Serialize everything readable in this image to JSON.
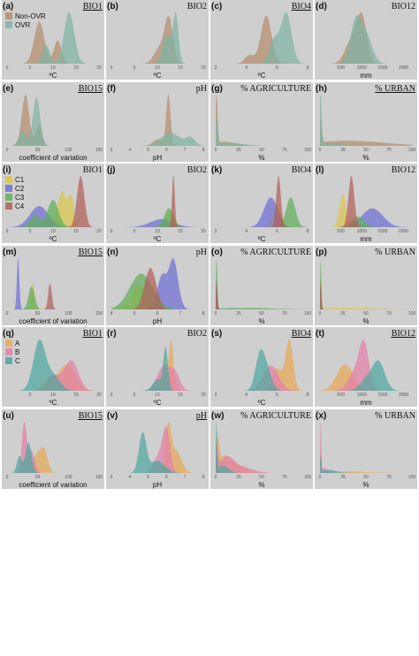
{
  "palettes": {
    "set1": [
      "#b48d6e",
      "#7fb3a4"
    ],
    "set2": [
      "#d9c64a",
      "#6f6fd6",
      "#5fae5a",
      "#b0605a"
    ],
    "set3": [
      "#e6a957",
      "#e37fa8",
      "#4fa8a0"
    ]
  },
  "legends": [
    {
      "row": 0,
      "entries": [
        "Non-OVR",
        "OVR"
      ]
    },
    {
      "row": 2,
      "entries": [
        "C1",
        "C2",
        "C3",
        "C4"
      ]
    },
    {
      "row": 4,
      "entries": [
        "A",
        "B",
        "C"
      ]
    }
  ],
  "chart_data": [
    {
      "id": "a",
      "label": "(a)",
      "title": "BIO1",
      "underline": true,
      "palette": "set1",
      "xlabel": "ºC",
      "ticks": [
        "0",
        "5",
        "10",
        "15",
        "20"
      ],
      "range": [
        0,
        20
      ],
      "series": [
        [
          [
            7,
            0.45,
            1.1
          ],
          [
            11,
            0.25,
            0.8
          ]
        ],
        [
          [
            13.5,
            0.55,
            1.1
          ],
          [
            8.5,
            0.2,
            0.8
          ]
        ]
      ]
    },
    {
      "id": "b",
      "label": "(b)",
      "title": "BIO2",
      "underline": false,
      "palette": "set1",
      "xlabel": "ºC",
      "ticks": [
        "0",
        "5",
        "10",
        "15",
        "20"
      ],
      "range": [
        0,
        20
      ],
      "series": [
        [
          [
            12.5,
            0.85,
            0.9
          ],
          [
            10.5,
            0.3,
            1.2
          ]
        ],
        [
          [
            14,
            0.95,
            0.6
          ],
          [
            12,
            0.55,
            0.9
          ]
        ]
      ]
    },
    {
      "id": "c",
      "label": "(c)",
      "title": "BIO4",
      "underline": true,
      "palette": "set1",
      "xlabel": "ºC",
      "ticks": [
        "2",
        "4",
        "6",
        "8"
      ],
      "range": [
        2,
        8
      ],
      "series": [
        [
          [
            5.3,
            0.85,
            0.35
          ],
          [
            4.2,
            0.15,
            0.3
          ]
        ],
        [
          [
            6.6,
            0.9,
            0.35
          ],
          [
            5.8,
            0.4,
            0.3
          ]
        ]
      ]
    },
    {
      "id": "d",
      "label": "(d)",
      "title": "BIO12",
      "underline": false,
      "palette": "set1",
      "xlabel": "mm",
      "ticks": [
        "500",
        "1000",
        "1500",
        "2000"
      ],
      "range": [
        0,
        2200
      ],
      "series": [
        [
          [
            1000,
            0.9,
            120
          ],
          [
            750,
            0.45,
            150
          ]
        ],
        [
          [
            850,
            0.8,
            130
          ],
          [
            1100,
            0.55,
            150
          ]
        ]
      ]
    },
    {
      "id": "e",
      "label": "(e)",
      "title": "BIO15",
      "underline": true,
      "palette": "set1",
      "xlabel": "coefficient of variation",
      "ticks": [
        "0",
        "50",
        "100",
        "150"
      ],
      "range": [
        0,
        150
      ],
      "series": [
        [
          [
            30,
            0.85,
            6
          ],
          [
            52,
            0.35,
            5
          ]
        ],
        [
          [
            48,
            0.8,
            6
          ],
          [
            25,
            0.25,
            6
          ]
        ]
      ]
    },
    {
      "id": "f",
      "label": "(f)",
      "title": "pH",
      "underline": false,
      "palette": "set1",
      "xlabel": "pH",
      "ticks": [
        "3",
        "4",
        "5",
        "6",
        "7",
        "8"
      ],
      "range": [
        3,
        8
      ],
      "series": [
        [
          [
            6.1,
            0.95,
            0.12
          ],
          [
            5.5,
            0.12,
            0.25
          ]
        ],
        [
          [
            6.2,
            0.25,
            0.5
          ],
          [
            7.3,
            0.15,
            0.25
          ]
        ]
      ]
    },
    {
      "id": "g",
      "label": "(g)",
      "title": "% AGRICULTURE",
      "underline": false,
      "palette": "set1",
      "xlabel": "%",
      "ticks": [
        "0",
        "25",
        "50",
        "75",
        "100"
      ],
      "range": [
        0,
        100
      ],
      "series": [
        [
          [
            0.8,
            0.95,
            1.2
          ],
          [
            10,
            0.08,
            12
          ]
        ],
        [
          [
            1,
            0.5,
            1.5
          ],
          [
            15,
            0.06,
            15
          ]
        ]
      ]
    },
    {
      "id": "h",
      "label": "(h)",
      "title": "% URBAN",
      "underline": true,
      "palette": "set1",
      "xlabel": "%",
      "ticks": [
        "0",
        "25",
        "50",
        "75",
        "100"
      ],
      "range": [
        0,
        100
      ],
      "series": [
        [
          [
            0.8,
            0.45,
            1.2
          ],
          [
            30,
            0.1,
            40
          ]
        ],
        [
          [
            0.5,
            0.95,
            1.2
          ],
          [
            10,
            0.05,
            15
          ]
        ]
      ]
    },
    {
      "id": "i",
      "label": "(i)",
      "title": "BIO1",
      "underline": false,
      "palette": "set2",
      "xlabel": "ºC",
      "ticks": [
        "0",
        "5",
        "10",
        "15",
        "20"
      ],
      "range": [
        0,
        20
      ],
      "series": [
        [
          [
            12,
            0.6,
            1.0
          ],
          [
            14,
            0.45,
            0.6
          ]
        ],
        [
          [
            7,
            0.35,
            2.0
          ]
        ],
        [
          [
            10,
            0.45,
            1.2
          ],
          [
            6,
            0.2,
            1.0
          ]
        ],
        [
          [
            16,
            0.85,
            0.8
          ]
        ]
      ]
    },
    {
      "id": "j",
      "label": "(j)",
      "title": "BIO2",
      "underline": false,
      "palette": "set2",
      "xlabel": "ºC",
      "ticks": [
        "0",
        "5",
        "10",
        "15",
        "20"
      ],
      "range": [
        0,
        20
      ],
      "series": [
        [
          [
            13,
            0.3,
            0.8
          ]
        ],
        [
          [
            11,
            0.15,
            2.5
          ]
        ],
        [
          [
            12.5,
            0.35,
            1.0
          ]
        ],
        [
          [
            13.5,
            0.95,
            0.3
          ]
        ]
      ]
    },
    {
      "id": "k",
      "label": "(k)",
      "title": "BIO4",
      "underline": false,
      "palette": "set2",
      "xlabel": "ºC",
      "ticks": [
        "2",
        "4",
        "6",
        "8"
      ],
      "range": [
        2,
        8
      ],
      "series": [
        [
          [
            6.0,
            0.4,
            0.3
          ]
        ],
        [
          [
            5.6,
            0.55,
            0.45
          ]
        ],
        [
          [
            6.9,
            0.55,
            0.3
          ]
        ],
        [
          [
            6.1,
            0.95,
            0.15
          ]
        ]
      ]
    },
    {
      "id": "l",
      "label": "(l)",
      "title": "BIO12",
      "underline": false,
      "palette": "set2",
      "xlabel": "mm",
      "ticks": [
        "500",
        "1000",
        "1500",
        "2000"
      ],
      "range": [
        0,
        2200
      ],
      "series": [
        [
          [
            550,
            0.6,
            80
          ]
        ],
        [
          [
            1250,
            0.35,
            250
          ]
        ],
        [
          [
            900,
            0.2,
            150
          ]
        ],
        [
          [
            750,
            0.95,
            70
          ]
        ]
      ]
    },
    {
      "id": "m",
      "label": "(m)",
      "title": "BIO15",
      "underline": true,
      "palette": "set2",
      "xlabel": "coefficient of variation",
      "ticks": [
        "0",
        "50",
        "100",
        "150"
      ],
      "range": [
        0,
        150
      ],
      "series": [
        [
          [
            42,
            0.45,
            3
          ]
        ],
        [
          [
            18,
            0.9,
            2
          ]
        ],
        [
          [
            40,
            0.4,
            5
          ]
        ],
        [
          [
            70,
            0.45,
            3
          ]
        ]
      ]
    },
    {
      "id": "n",
      "label": "(n)",
      "title": "pH",
      "underline": false,
      "palette": "set2",
      "xlabel": "pH",
      "ticks": [
        "4",
        "5",
        "6",
        "7",
        "8"
      ],
      "range": [
        4,
        8
      ],
      "series": [
        [
          [
            5.2,
            0.45,
            0.35
          ]
        ],
        [
          [
            6.7,
            0.9,
            0.2
          ],
          [
            6.2,
            0.6,
            0.2
          ]
        ],
        [
          [
            5.3,
            0.65,
            0.5
          ]
        ],
        [
          [
            5.7,
            0.75,
            0.25
          ]
        ]
      ]
    },
    {
      "id": "o",
      "label": "(o)",
      "title": "% AGRICULTURE",
      "underline": false,
      "palette": "set2",
      "xlabel": "%",
      "ticks": [
        "0",
        "25",
        "50",
        "75",
        "100"
      ],
      "range": [
        0,
        100
      ],
      "series": [
        [
          [
            1,
            0.25,
            1
          ]
        ],
        [
          [
            1,
            0.4,
            1
          ]
        ],
        [
          [
            1,
            0.95,
            0.8
          ],
          [
            30,
            0.03,
            30
          ]
        ],
        [
          [
            1,
            0.5,
            1
          ]
        ]
      ]
    },
    {
      "id": "p",
      "label": "(p)",
      "title": "% URBAN",
      "underline": false,
      "palette": "set2",
      "xlabel": "%",
      "ticks": [
        "0",
        "25",
        "50",
        "75",
        "100"
      ],
      "range": [
        0,
        100
      ],
      "series": [
        [
          [
            0.8,
            0.6,
            0.8
          ],
          [
            30,
            0.03,
            30
          ]
        ],
        [
          [
            0.8,
            0.4,
            0.8
          ]
        ],
        [
          [
            0.8,
            0.95,
            0.6
          ]
        ],
        [
          [
            0.8,
            0.5,
            0.8
          ]
        ]
      ]
    },
    {
      "id": "q",
      "label": "(q)",
      "title": "BIO1",
      "underline": true,
      "palette": "set3",
      "xlabel": "ºC",
      "ticks": [
        "5",
        "10",
        "15",
        "20"
      ],
      "range": [
        0,
        20
      ],
      "series": [
        [
          [
            13,
            0.35,
            1.8
          ],
          [
            9,
            0.15,
            1.2
          ]
        ],
        [
          [
            14,
            0.4,
            1.5
          ],
          [
            10,
            0.2,
            1.5
          ]
        ],
        [
          [
            7,
            0.65,
            1.3
          ],
          [
            10,
            0.2,
            1.5
          ]
        ]
      ]
    },
    {
      "id": "r",
      "label": "(r)",
      "title": "BIO2",
      "underline": false,
      "palette": "set3",
      "xlabel": "ºC",
      "ticks": [
        "0",
        "5",
        "10",
        "15",
        "20"
      ],
      "range": [
        0,
        20
      ],
      "series": [
        [
          [
            13,
            0.85,
            0.5
          ],
          [
            11,
            0.3,
            1.2
          ]
        ],
        [
          [
            11.5,
            0.45,
            1.5
          ],
          [
            14,
            0.25,
            1.0
          ]
        ],
        [
          [
            11.8,
            0.75,
            0.5
          ],
          [
            10,
            0.2,
            1.0
          ]
        ]
      ]
    },
    {
      "id": "s",
      "label": "(s)",
      "title": "BIO4",
      "underline": true,
      "palette": "set3",
      "xlabel": "ºC",
      "ticks": [
        "2",
        "4",
        "6",
        "8"
      ],
      "range": [
        2,
        8
      ],
      "series": [
        [
          [
            6.8,
            0.9,
            0.25
          ],
          [
            6.0,
            0.4,
            0.3
          ]
        ],
        [
          [
            5.6,
            0.45,
            0.5
          ]
        ],
        [
          [
            4.9,
            0.65,
            0.3
          ],
          [
            5.4,
            0.3,
            0.3
          ]
        ]
      ]
    },
    {
      "id": "t",
      "label": "(t)",
      "title": "BIO12",
      "underline": true,
      "palette": "set3",
      "xlabel": "mm",
      "ticks": [
        "500",
        "1000",
        "1500",
        "2000"
      ],
      "range": [
        0,
        2200
      ],
      "series": [
        [
          [
            600,
            0.5,
            200
          ]
        ],
        [
          [
            1050,
            0.9,
            120
          ],
          [
            800,
            0.3,
            150
          ]
        ],
        [
          [
            1400,
            0.55,
            150
          ],
          [
            1100,
            0.2,
            150
          ]
        ]
      ]
    },
    {
      "id": "u",
      "label": "(u)",
      "title": "BIO15",
      "underline": true,
      "palette": "set3",
      "xlabel": "coefficient of variation",
      "ticks": [
        "0",
        "50",
        "100",
        "150"
      ],
      "range": [
        0,
        150
      ],
      "series": [
        [
          [
            60,
            0.45,
            6
          ],
          [
            48,
            0.3,
            5
          ]
        ],
        [
          [
            28,
            0.9,
            4
          ],
          [
            40,
            0.4,
            5
          ]
        ],
        [
          [
            35,
            0.55,
            5
          ],
          [
            20,
            0.3,
            4
          ]
        ]
      ]
    },
    {
      "id": "v",
      "label": "(v)",
      "title": "pH",
      "underline": true,
      "palette": "set3",
      "xlabel": "pH",
      "ticks": [
        "3",
        "4",
        "5",
        "6",
        "7",
        "8"
      ],
      "range": [
        3,
        8
      ],
      "series": [
        [
          [
            6.1,
            0.85,
            0.15
          ],
          [
            6.5,
            0.45,
            0.3
          ]
        ],
        [
          [
            6.0,
            0.8,
            0.2
          ],
          [
            5.6,
            0.35,
            0.3
          ]
        ],
        [
          [
            4.7,
            0.8,
            0.2
          ],
          [
            5.5,
            0.25,
            0.4
          ]
        ]
      ]
    },
    {
      "id": "w",
      "label": "(w)",
      "title": "% AGRICULTURE",
      "underline": false,
      "palette": "set3",
      "xlabel": "%",
      "ticks": [
        "0",
        "25",
        "50",
        "75",
        "100"
      ],
      "range": [
        0,
        100
      ],
      "series": [
        [
          [
            2,
            0.6,
            2
          ],
          [
            10,
            0.3,
            6
          ],
          [
            25,
            0.15,
            10
          ]
        ],
        [
          [
            1,
            0.45,
            1.5
          ],
          [
            12,
            0.3,
            8
          ],
          [
            30,
            0.1,
            12
          ]
        ],
        [
          [
            0.8,
            0.95,
            0.8
          ],
          [
            8,
            0.15,
            6
          ]
        ]
      ]
    },
    {
      "id": "x",
      "label": "(x)",
      "title": "% URBAN",
      "underline": false,
      "palette": "set3",
      "xlabel": "%",
      "ticks": [
        "0",
        "25",
        "50",
        "75",
        "100"
      ],
      "range": [
        0,
        100
      ],
      "series": [
        [
          [
            0.8,
            0.35,
            0.8
          ],
          [
            25,
            0.03,
            25
          ]
        ],
        [
          [
            0.8,
            0.95,
            0.6
          ],
          [
            5,
            0.1,
            3
          ]
        ],
        [
          [
            0.8,
            0.3,
            0.8
          ],
          [
            10,
            0.06,
            8
          ]
        ]
      ]
    }
  ]
}
